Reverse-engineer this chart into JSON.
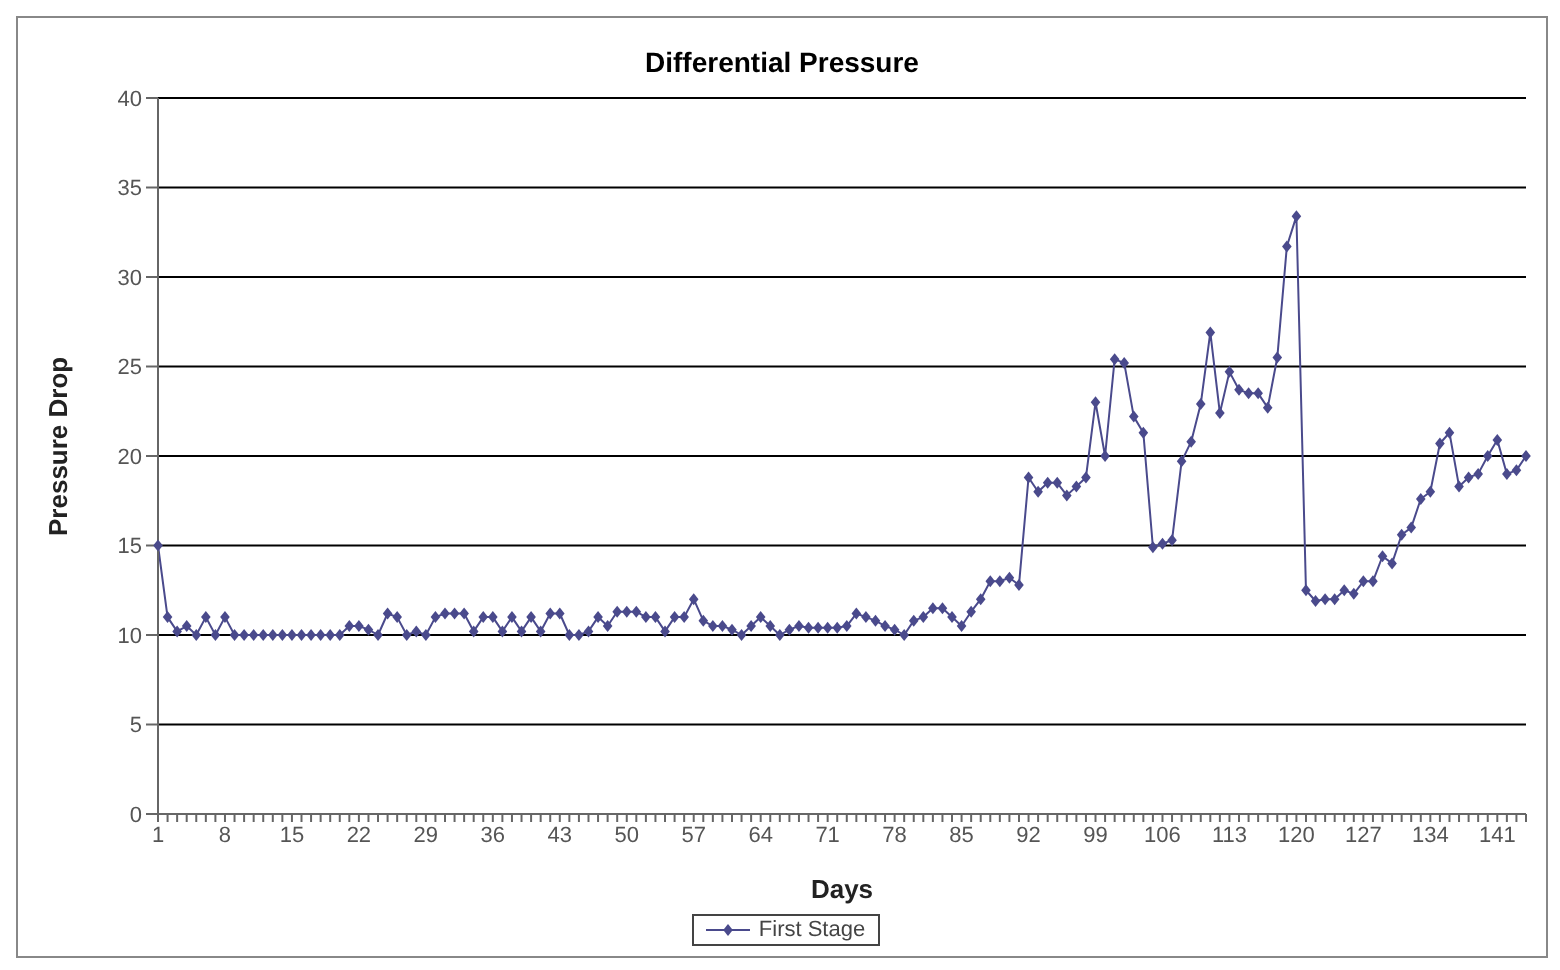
{
  "chart_data": {
    "type": "line",
    "title": "Differential Pressure",
    "xlabel": "Days",
    "ylabel": "Pressure Drop",
    "categories": [
      "1",
      null,
      null,
      null,
      null,
      null,
      null,
      "8",
      null,
      null,
      null,
      null,
      null,
      null,
      "15",
      null,
      null,
      null,
      null,
      null,
      null,
      "22",
      null,
      null,
      null,
      null,
      null,
      null,
      "29",
      null,
      null,
      null,
      null,
      null,
      null,
      "36",
      null,
      null,
      null,
      null,
      null,
      null,
      "43",
      null,
      null,
      null,
      null,
      null,
      null,
      "50",
      null,
      null,
      null,
      null,
      null,
      null,
      "57",
      null,
      null,
      null,
      null,
      null,
      null,
      "64",
      null,
      null,
      null,
      null,
      null,
      null,
      "71",
      null,
      null,
      null,
      null,
      null,
      null,
      "78",
      null,
      null,
      null,
      null,
      null,
      null,
      "85",
      null,
      null,
      null,
      null,
      null,
      null,
      "92",
      null,
      null,
      null,
      null,
      null,
      null,
      "99",
      null,
      null,
      null,
      null,
      null,
      null,
      "106",
      null,
      null,
      null,
      null,
      null,
      null,
      "113",
      null,
      null,
      null,
      null,
      null,
      null,
      "120",
      null,
      null,
      null,
      null,
      null,
      null,
      "127",
      null,
      null,
      null,
      null,
      null,
      null,
      "134",
      null,
      null,
      null,
      null,
      null,
      null,
      "141",
      null,
      null,
      null
    ],
    "series": [
      {
        "name": "First Stage",
        "color": "#4a4a8c",
        "values": [
          15,
          11,
          10.2,
          10.5,
          10,
          11,
          10,
          11,
          10,
          10,
          10,
          10,
          10,
          10,
          10,
          10,
          10,
          10,
          10,
          10,
          10.5,
          10.5,
          10.3,
          10,
          11.2,
          11,
          10,
          10.2,
          10,
          11,
          11.2,
          11.2,
          11.2,
          10.2,
          11,
          11,
          10.2,
          11,
          10.2,
          11,
          10.2,
          11.2,
          11.2,
          10,
          10,
          10.2,
          11,
          10.5,
          11.3,
          11.3,
          11.3,
          11,
          11,
          10.2,
          11,
          11,
          12,
          10.8,
          10.5,
          10.5,
          10.3,
          10,
          10.5,
          11,
          10.5,
          10,
          10.3,
          10.5,
          10.4,
          10.4,
          10.4,
          10.4,
          10.5,
          11.2,
          11,
          10.8,
          10.5,
          10.3,
          10,
          10.8,
          11,
          11.5,
          11.5,
          11,
          10.5,
          11.3,
          12,
          13,
          13,
          13.2,
          12.8,
          18.8,
          18,
          18.5,
          18.5,
          17.8,
          18.3,
          18.8,
          23,
          20,
          25.4,
          25.2,
          22.2,
          21.3,
          14.9,
          15.1,
          15.3,
          19.7,
          20.8,
          22.9,
          26.9,
          22.4,
          24.7,
          23.7,
          23.5,
          23.5,
          22.7,
          25.5,
          31.7,
          33.4,
          12.5,
          11.9,
          12,
          12,
          12.5,
          12.3,
          13,
          13,
          14.4,
          14,
          15.6,
          16,
          17.6,
          18,
          20.7,
          21.3,
          18.3,
          18.8,
          19,
          20,
          20.9,
          19,
          19.2,
          20
        ]
      }
    ],
    "ylim": [
      0,
      40
    ],
    "yticks": [
      0,
      5,
      10,
      15,
      20,
      25,
      30,
      35,
      40
    ],
    "grid": "y",
    "legend": "bottom",
    "marker": "diamond",
    "line_style": "solid"
  }
}
